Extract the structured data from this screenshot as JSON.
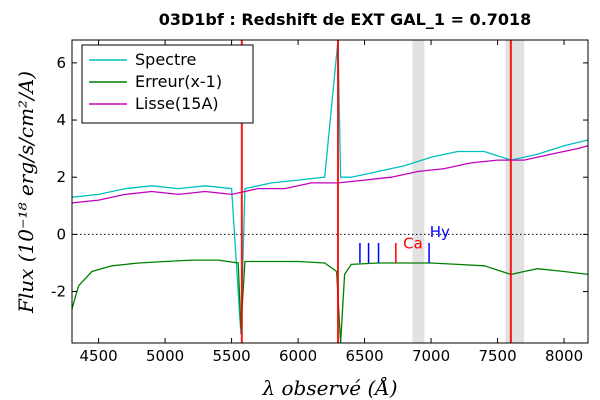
{
  "chart_data": {
    "type": "line",
    "title": "03D1bf : Redshift de EXT GAL_1 = 0.7018",
    "xlabel": "λ observé (Å)",
    "ylabel": "Flux (10⁻¹⁸ erg/s/cm²/A)",
    "xlim": [
      4300,
      8180
    ],
    "ylim": [
      -3.8,
      6.8
    ],
    "xticks": [
      4500,
      5000,
      5500,
      6000,
      6500,
      7000,
      7500,
      8000
    ],
    "yticks": [
      -2,
      0,
      2,
      4,
      6
    ],
    "xtick_labels": [
      "4500",
      "5000",
      "5500",
      "6000",
      "6500",
      "7000",
      "7500",
      "8000"
    ],
    "ytick_labels": [
      "-2",
      "0",
      "2",
      "4",
      "6"
    ],
    "grid": false,
    "legend_position": "top-left",
    "zero_line": {
      "y": 0,
      "style": "dotted"
    },
    "shaded_bands": [
      {
        "x_range": [
          6860,
          6950
        ]
      },
      {
        "x_range": [
          7560,
          7700
        ]
      }
    ],
    "series": [
      {
        "name": "Spectre",
        "color": "#00bfbf",
        "x": [
          4300,
          4500,
          4700,
          4900,
          5100,
          5300,
          5500,
          5570,
          5600,
          5800,
          6000,
          6200,
          6300,
          6320,
          6400,
          6600,
          6800,
          7000,
          7200,
          7400,
          7600,
          7800,
          8000,
          8180
        ],
        "y": [
          1.3,
          1.4,
          1.6,
          1.7,
          1.6,
          1.7,
          1.6,
          -3.5,
          1.6,
          1.8,
          1.9,
          2.0,
          6.8,
          2.0,
          2.0,
          2.2,
          2.4,
          2.7,
          2.9,
          2.9,
          2.6,
          2.8,
          3.1,
          3.3
        ]
      },
      {
        "name": "Erreur(x-1)",
        "color": "#008000",
        "x": [
          4300,
          4350,
          4450,
          4600,
          4800,
          5000,
          5200,
          5400,
          5550,
          5570,
          5600,
          5800,
          6000,
          6200,
          6290,
          6320,
          6350,
          6400,
          6600,
          6800,
          7000,
          7200,
          7400,
          7600,
          7700,
          7800,
          8000,
          8180
        ],
        "y": [
          -2.6,
          -1.8,
          -1.3,
          -1.1,
          -1.0,
          -0.95,
          -0.9,
          -0.9,
          -1.0,
          -3.3,
          -0.95,
          -0.95,
          -0.95,
          -1.0,
          -1.3,
          -3.8,
          -1.4,
          -1.05,
          -1.0,
          -1.0,
          -1.0,
          -1.05,
          -1.1,
          -1.4,
          -1.3,
          -1.2,
          -1.3,
          -1.4
        ]
      },
      {
        "name": "Lisse(15A)",
        "color": "#bf00bf",
        "x": [
          4300,
          4500,
          4700,
          4900,
          5100,
          5300,
          5500,
          5700,
          5900,
          6100,
          6300,
          6500,
          6700,
          6900,
          7100,
          7300,
          7500,
          7700,
          7900,
          8100,
          8180
        ],
        "y": [
          1.1,
          1.2,
          1.4,
          1.5,
          1.4,
          1.5,
          1.4,
          1.6,
          1.6,
          1.8,
          1.8,
          1.9,
          2.0,
          2.2,
          2.3,
          2.5,
          2.6,
          2.6,
          2.8,
          3.0,
          3.1
        ]
      }
    ],
    "markers": [
      {
        "x": 5577,
        "color": "#ff0000"
      },
      {
        "x": 6300,
        "color": "#ff0000"
      },
      {
        "x": 7600,
        "color": "#ff0000"
      }
    ],
    "line_ticks": [
      {
        "x": 6465,
        "color": "#0000ff"
      },
      {
        "x": 6530,
        "color": "#0000ff"
      },
      {
        "x": 6605,
        "color": "#0000ff"
      },
      {
        "x": 6735,
        "color": "#ff0000"
      },
      {
        "x": 6985,
        "color": "#0000ff"
      }
    ],
    "line_labels": [
      {
        "text": "Ca",
        "x": 6790,
        "y": -0.5,
        "color": "#ff0000"
      },
      {
        "text": "Hy",
        "x": 6990,
        "y": -0.1,
        "color": "#0000ff"
      }
    ]
  }
}
